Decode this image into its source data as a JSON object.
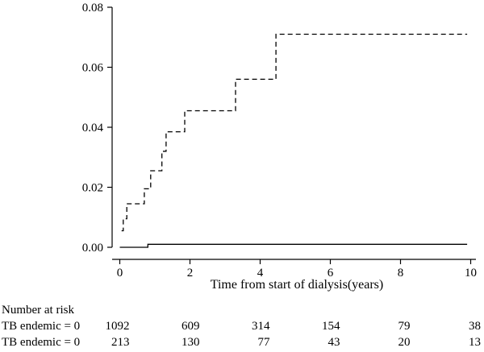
{
  "chart_data": {
    "type": "line",
    "title": "",
    "xlabel": "Time from start of dialysis(years)",
    "ylabel": "",
    "xlim": [
      0,
      10
    ],
    "ylim": [
      0,
      0.08
    ],
    "x_ticks": [
      0,
      2,
      4,
      6,
      8,
      10
    ],
    "y_ticks": [
      0.0,
      0.02,
      0.04,
      0.06,
      0.08
    ],
    "x_tick_labels": [
      "0",
      "2",
      "4",
      "6",
      "8",
      "10"
    ],
    "y_tick_labels": [
      "0.00",
      "0.02",
      "0.04",
      "0.06",
      "0.08"
    ],
    "grid": false,
    "legend": "none",
    "series": [
      {
        "style": "solid",
        "color": "#000000",
        "points": [
          [
            0,
            0.0
          ],
          [
            0.8,
            0.0
          ],
          [
            0.8,
            0.001
          ],
          [
            9.9,
            0.001
          ]
        ]
      },
      {
        "style": "dashed",
        "color": "#000000",
        "points": [
          [
            0.05,
            0.0055
          ],
          [
            0.1,
            0.0055
          ],
          [
            0.1,
            0.0095
          ],
          [
            0.2,
            0.0095
          ],
          [
            0.2,
            0.0145
          ],
          [
            0.7,
            0.0145
          ],
          [
            0.7,
            0.0195
          ],
          [
            0.88,
            0.0195
          ],
          [
            0.88,
            0.0255
          ],
          [
            1.2,
            0.0255
          ],
          [
            1.2,
            0.032
          ],
          [
            1.32,
            0.032
          ],
          [
            1.32,
            0.0385
          ],
          [
            1.85,
            0.0385
          ],
          [
            1.85,
            0.0455
          ],
          [
            3.3,
            0.0455
          ],
          [
            3.3,
            0.056
          ],
          [
            4.45,
            0.056
          ],
          [
            4.45,
            0.071
          ],
          [
            9.9,
            0.071
          ]
        ]
      }
    ],
    "risk_table": {
      "title": "Number at risk",
      "times": [
        0,
        2,
        4,
        6,
        8,
        10
      ],
      "rows": [
        {
          "label": "TB endemic = 0",
          "values": [
            "1092",
            "609",
            "314",
            "154",
            "79",
            "38"
          ]
        },
        {
          "label": "TB endemic = 0",
          "values": [
            "213",
            "130",
            "77",
            "43",
            "20",
            "13"
          ]
        }
      ]
    }
  }
}
